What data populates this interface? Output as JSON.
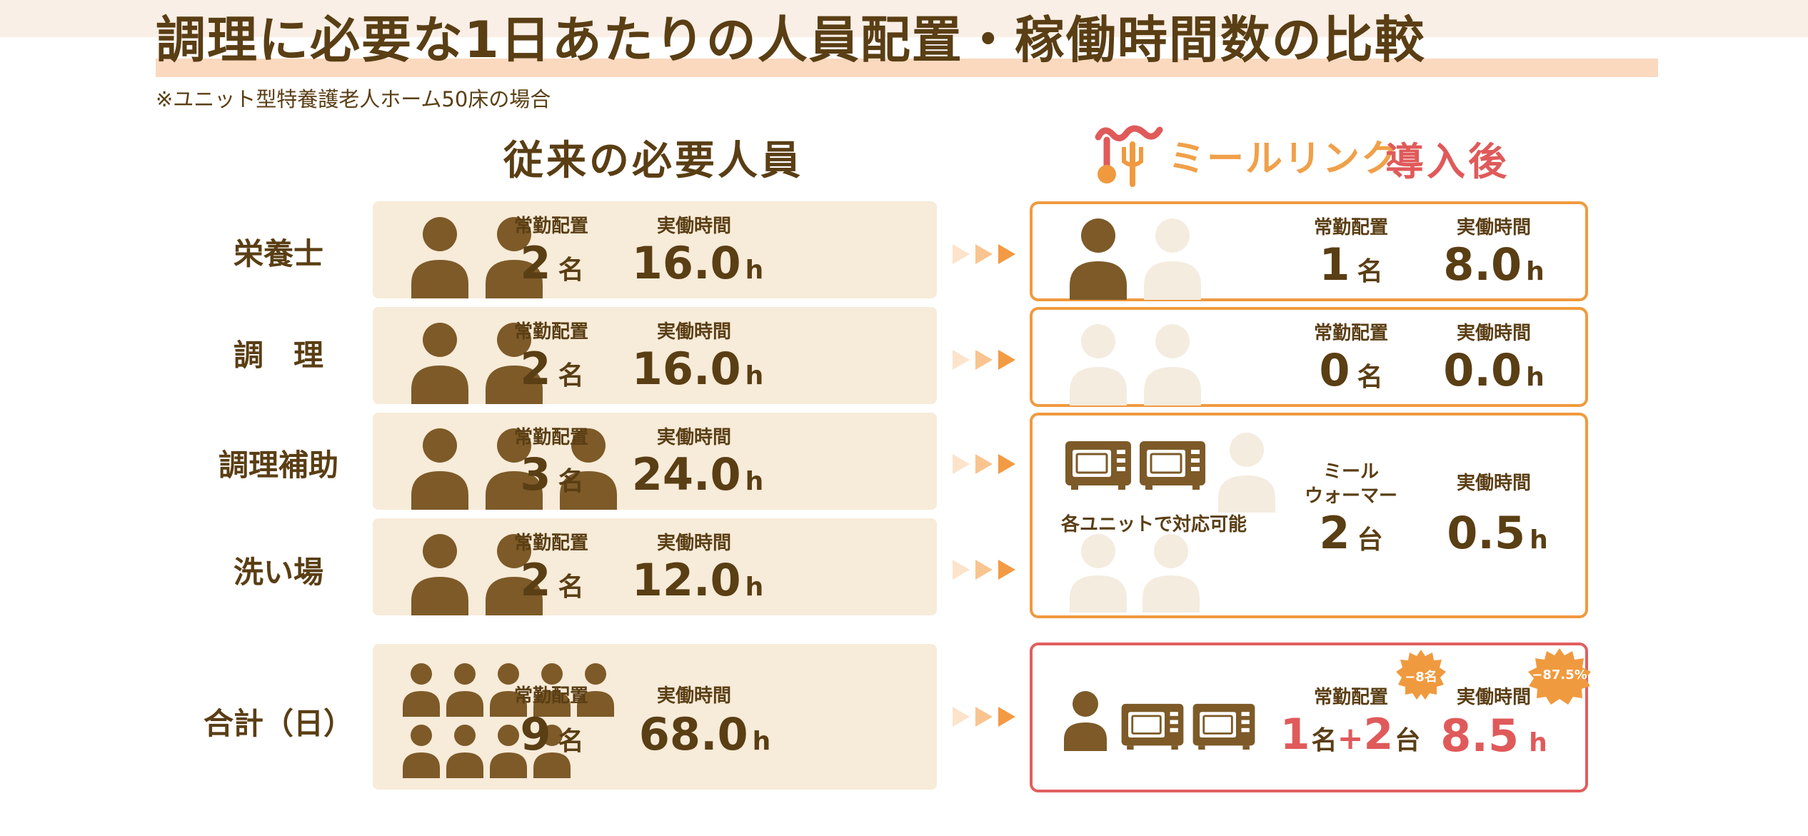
{
  "title": "調理に必要な1日あたりの人員配置・稼働時間数の比較",
  "note": "※ユニット型特養護老人ホーム50床の場合",
  "left_heading": "従来の必要人員",
  "logo_text": "ミールリンク",
  "right_heading": "導入後",
  "labels": {
    "placement": "常勤配置",
    "hours": "実働時間",
    "person_unit": "名",
    "unit_count": "台",
    "hour_unit": "h"
  },
  "rows": [
    {
      "label": "栄養士",
      "before_staff": "2",
      "before_hours": "16.0",
      "after_staff": "1",
      "after_hours": "8.0"
    },
    {
      "label": "調　理",
      "before_staff": "2",
      "before_hours": "16.0",
      "after_staff": "0",
      "after_hours": "0.0"
    },
    {
      "label": "調理補助",
      "before_staff": "3",
      "before_hours": "24.0"
    },
    {
      "label": "洗い場",
      "before_staff": "2",
      "before_hours": "12.0"
    }
  ],
  "merged": {
    "caption": "各ユニットで対応可能",
    "device_line1": "ミール",
    "device_line2": "ウォーマー",
    "device_count": "2",
    "hours": "0.5"
  },
  "total": {
    "label": "合計（日）",
    "before_staff": "9",
    "before_hours": "68.0",
    "after_staff": "1",
    "after_plus": "+",
    "after_devices": "2",
    "after_hours": "8.5",
    "badge_staff": "−8名",
    "badge_hours": "−87.5%"
  },
  "colors": {
    "brown": "#7d5a28",
    "light_person": "#f4ecdf",
    "orange": "#f09a3f",
    "red": "#e05a5a"
  }
}
